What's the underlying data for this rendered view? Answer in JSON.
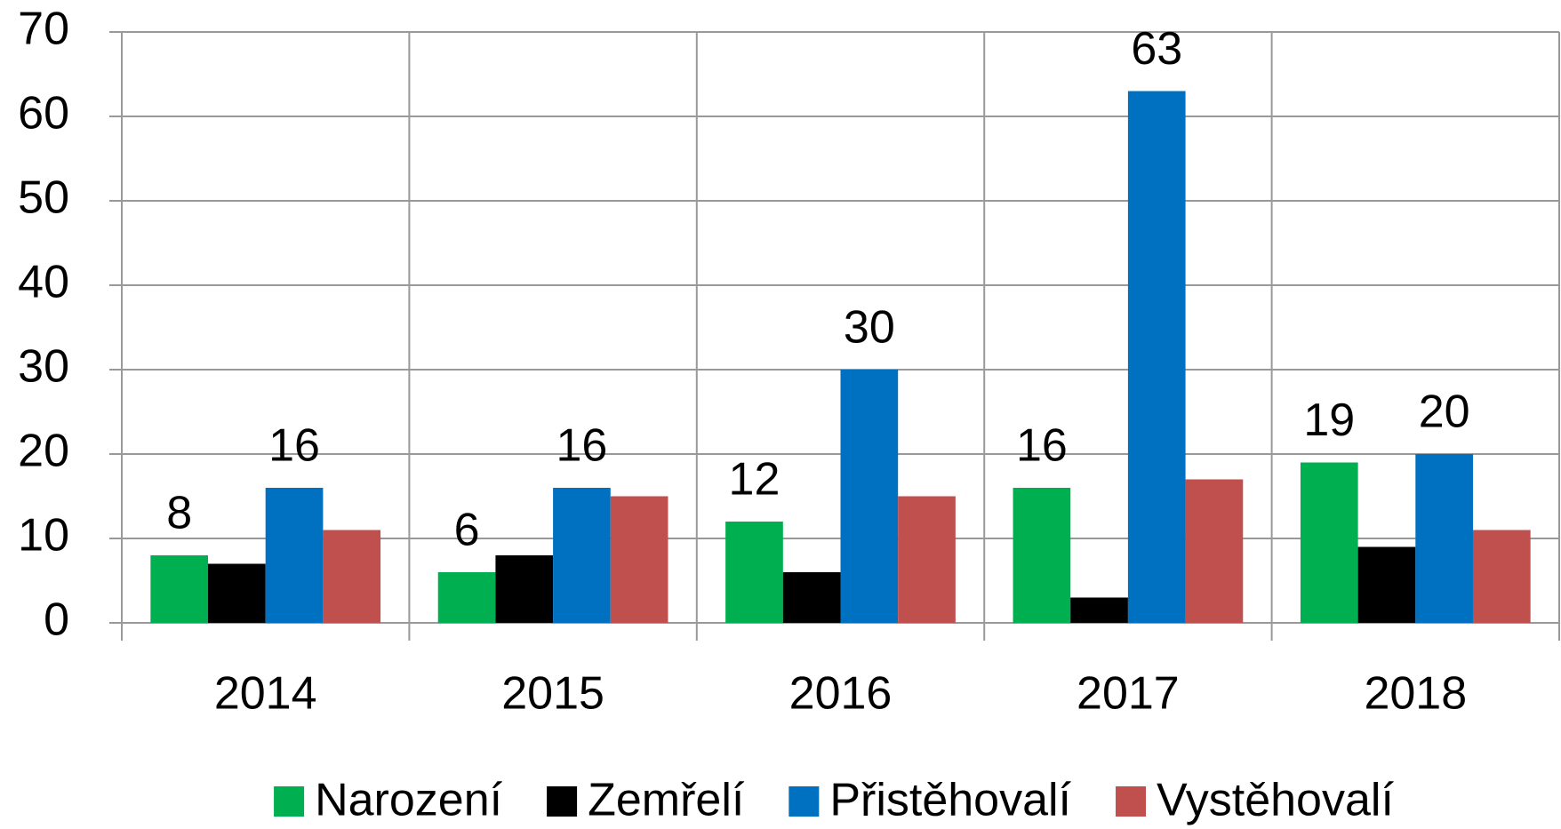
{
  "chart_data": {
    "type": "bar",
    "categories": [
      "2014",
      "2015",
      "2016",
      "2017",
      "2018"
    ],
    "series": [
      {
        "name": "Narození",
        "color": "#00b050",
        "values": [
          8,
          6,
          12,
          16,
          19
        ],
        "data_labels": true
      },
      {
        "name": "Zemřelí",
        "color": "#000000",
        "values": [
          7,
          8,
          6,
          3,
          9
        ],
        "data_labels": false
      },
      {
        "name": "Přistěhovalí",
        "color": "#0070c0",
        "values": [
          16,
          16,
          30,
          63,
          20
        ],
        "data_labels": true
      },
      {
        "name": "Vystěhovalí",
        "color": "#c0504d",
        "values": [
          11,
          15,
          15,
          17,
          11
        ],
        "data_labels": false
      }
    ],
    "ylim": [
      0,
      70
    ],
    "yticks": [
      0,
      10,
      20,
      30,
      40,
      50,
      60,
      70
    ],
    "grid": true,
    "legend": "bottom"
  }
}
